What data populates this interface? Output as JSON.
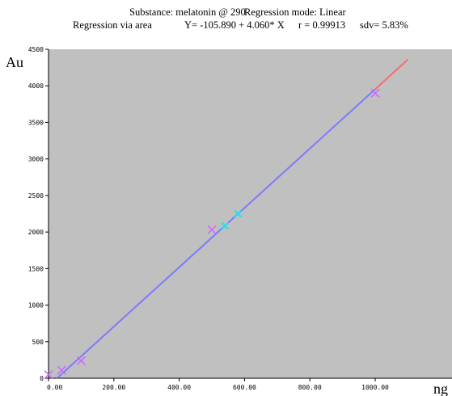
{
  "header": {
    "line1": {
      "substance": "Substance: melatonin @ 290",
      "mode": "Regression mode:  Linear"
    },
    "line2": {
      "via": "Regression via area",
      "equation": "Y= -105.890 + 4.060* X",
      "r": "r = 0.99913",
      "sdv": "sdv= 5.83%"
    }
  },
  "chart_data": {
    "type": "scatter",
    "ylabel": "Au",
    "xlabel": "ng",
    "xlim": [
      0,
      1120
    ],
    "ylim": [
      0,
      4500
    ],
    "x_ticks": [
      {
        "value": 0,
        "label": "0.00"
      },
      {
        "value": 200,
        "label": "200.00"
      },
      {
        "value": 400,
        "label": "400.00"
      },
      {
        "value": 600,
        "label": "600.00"
      },
      {
        "value": 800,
        "label": "800.00"
      },
      {
        "value": 1000,
        "label": "1000.00"
      }
    ],
    "y_ticks": [
      {
        "value": 0,
        "label": "0"
      },
      {
        "value": 500,
        "label": "500"
      },
      {
        "value": 1000,
        "label": "1000"
      },
      {
        "value": 1500,
        "label": "1500"
      },
      {
        "value": 2000,
        "label": "2000"
      },
      {
        "value": 2500,
        "label": "2500"
      },
      {
        "value": 3000,
        "label": "3000"
      },
      {
        "value": 3500,
        "label": "3500"
      },
      {
        "value": 4000,
        "label": "4000"
      },
      {
        "value": 4500,
        "label": "4500"
      }
    ],
    "regression": {
      "intercept": -105.89,
      "slope": 4.06,
      "x_start": 0,
      "x_end": 1000,
      "x_extend": 1100
    },
    "standards": [
      {
        "x": 0,
        "y": 50
      },
      {
        "x": 40,
        "y": 110
      },
      {
        "x": 100,
        "y": 240
      },
      {
        "x": 500,
        "y": 2030
      },
      {
        "x": 1000,
        "y": 3900
      }
    ],
    "samples": [
      {
        "x": 540,
        "y": 2085
      },
      {
        "x": 580,
        "y": 2250
      }
    ],
    "colors": {
      "plot_bg": "#c0c0c0",
      "regression": "#7b7bff",
      "extension": "#ff6a6a",
      "standards": "#cc66ff",
      "samples": "#22e0ee"
    }
  }
}
